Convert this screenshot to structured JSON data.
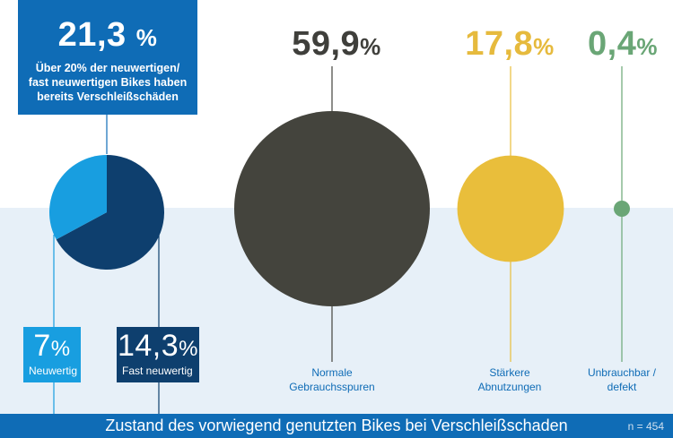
{
  "chart_data": {
    "type": "pie",
    "title": "Zustand des vorwiegend genutzten Bikes bei Verschleißschaden",
    "sample_size": "n = 454",
    "highlight": {
      "value": "21,3",
      "unit": "%",
      "text": "Über 20% der neuwertigen/ fast neuwertigen Bikes haben bereits Verschleißschäden"
    },
    "categories": [
      {
        "key": "new",
        "label": "Neuwertig",
        "value": 7,
        "display": "7",
        "unit": "%",
        "color": "#189ee0"
      },
      {
        "key": "almost",
        "label": "Fast neuwertig",
        "value": 14.3,
        "display": "14,3",
        "unit": "%",
        "color": "#0e3f6e"
      },
      {
        "key": "normal",
        "label": "Normale Gebrauchsspuren",
        "value": 59.9,
        "display": "59,9",
        "unit": "%",
        "color": "#44443d"
      },
      {
        "key": "strong",
        "label": "Stärkere Abnutzungen",
        "value": 17.8,
        "display": "17,8",
        "unit": "%",
        "color": "#e9be3b"
      },
      {
        "key": "unusable",
        "label": "Unbrauchbar / defekt",
        "value": 0.4,
        "display": "0,4",
        "unit": "%",
        "color": "#6aa676"
      }
    ]
  }
}
